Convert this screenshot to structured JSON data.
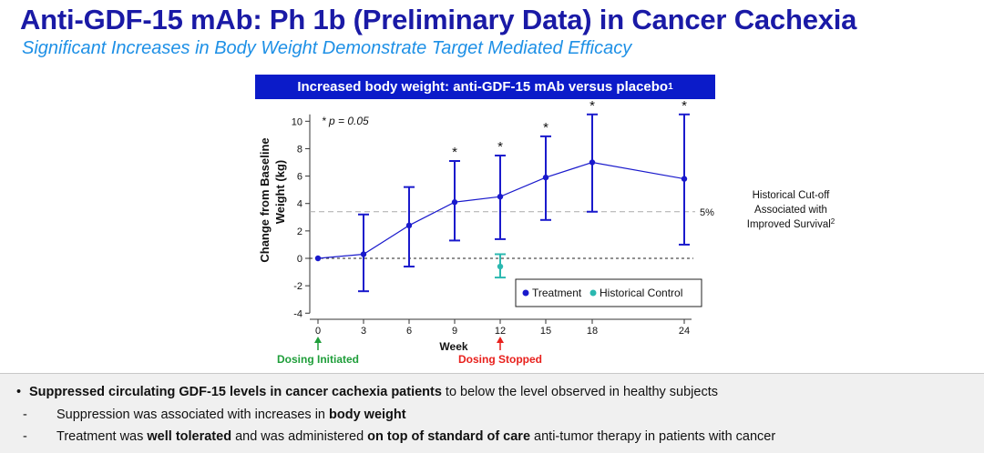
{
  "header": {
    "title": "Anti-GDF-15 mAb: Ph 1b (Preliminary Data) in Cancer Cachexia",
    "subtitle": "Significant Increases in Body Weight Demonstrate Target Mediated Efficacy",
    "banner": "Increased body weight: anti-GDF-15 mAb versus placebo",
    "banner_sup": "1"
  },
  "chart_data": {
    "type": "line",
    "x": [
      0,
      3,
      6,
      9,
      12,
      15,
      18,
      24
    ],
    "x_ticks": [
      "0",
      "3",
      "6",
      "9",
      "12",
      "15",
      "18",
      "24"
    ],
    "y_ticks": [
      "10",
      "8",
      "6",
      "4",
      "2",
      "0",
      "-2",
      "-4"
    ],
    "ylim": [
      -4,
      11
    ],
    "xlabel": "Week",
    "ylabel_line1": "Change from Baseline",
    "ylabel_line2": "Weight (kg)",
    "series": [
      {
        "name": "Treatment",
        "color": "#1a1acc",
        "values": [
          0,
          0.3,
          2.4,
          4.1,
          4.5,
          5.9,
          7.0,
          5.8
        ],
        "error_low": [
          0,
          -2.4,
          -0.6,
          1.3,
          1.4,
          2.8,
          3.4,
          1.0
        ],
        "error_high": [
          0,
          3.2,
          5.2,
          7.1,
          7.5,
          8.9,
          10.5,
          10.5
        ],
        "significant": [
          false,
          false,
          false,
          true,
          true,
          true,
          true,
          true
        ]
      },
      {
        "name": "Historical  Control",
        "color": "#2bb8b0",
        "x": [
          12
        ],
        "values": [
          -0.6
        ],
        "error_low": [
          -1.4
        ],
        "error_high": [
          0.3
        ]
      }
    ],
    "significance_mark": "*",
    "annotation_p": "* p = 0.05",
    "reference_line": {
      "value": 3.4,
      "label": "5%",
      "note_lines": [
        "Historical Cut-off",
        "Associated with",
        "Improved Survival"
      ],
      "note_sup": "2"
    },
    "events": [
      {
        "label": "Dosing Initiated",
        "x": 0,
        "color": "#1f9e3a"
      },
      {
        "label": "Dosing Stopped",
        "x": 12,
        "color": "#e8201c"
      }
    ],
    "legend_position": "bottom-right",
    "grid": false
  },
  "bullets": {
    "main_bold": "Suppressed circulating GDF-15 levels in cancer cachexia patients",
    "main_rest": " to below the level observed in healthy subjects",
    "sub1_a": "Suppression was associated with increases in ",
    "sub1_bold": "body weight",
    "sub2_a": "Treatment was ",
    "sub2_bold1": "well tolerated",
    "sub2_b": " and was administered ",
    "sub2_bold2": "on top of standard of care",
    "sub2_c": " anti-tumor therapy in patients with cancer",
    "bullet_char": "•",
    "dash_char": "-"
  }
}
